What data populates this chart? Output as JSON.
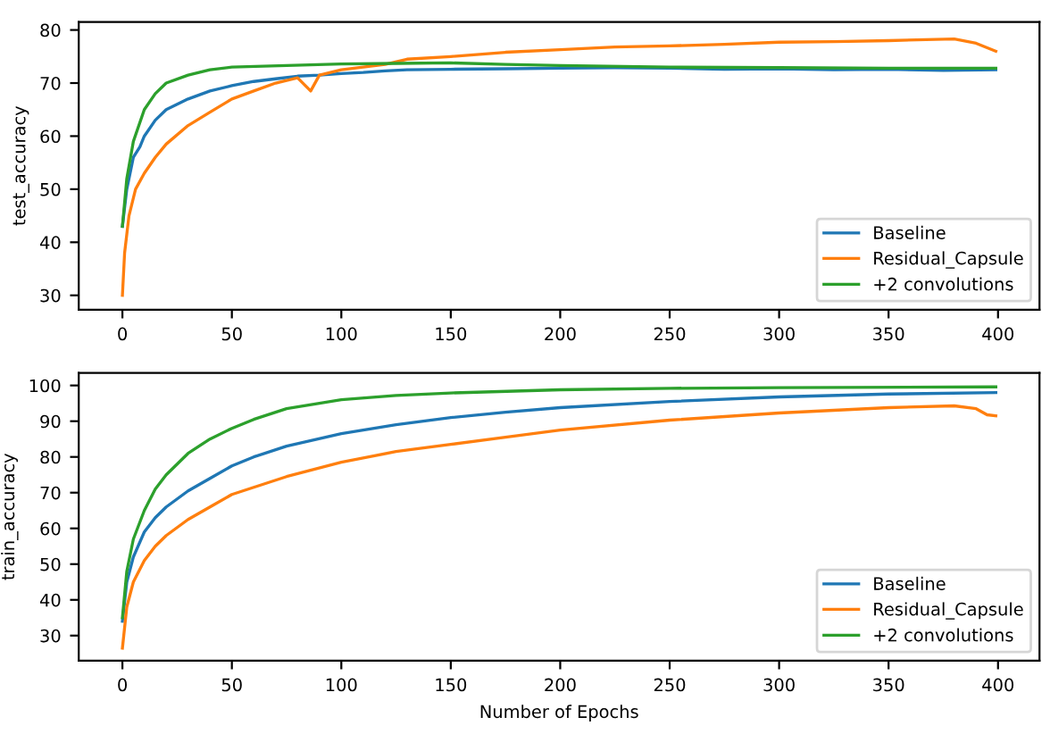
{
  "chart_data": [
    {
      "type": "line",
      "ylabel": "test_accuracy",
      "xlim": [
        -19.95,
        418.95
      ],
      "ylim": [
        27.3,
        81.5
      ],
      "xticks": [
        0,
        50,
        100,
        150,
        200,
        250,
        300,
        350,
        400
      ],
      "yticks": [
        30,
        40,
        50,
        60,
        70,
        80
      ],
      "legend": "lower right",
      "grid": false,
      "series": [
        {
          "name": "Baseline",
          "color": "#1f77b4",
          "x": [
            0,
            2,
            5,
            8,
            10,
            15,
            20,
            25,
            30,
            40,
            50,
            60,
            70,
            80,
            90,
            100,
            110,
            120,
            130,
            150,
            175,
            200,
            225,
            250,
            275,
            300,
            325,
            350,
            375,
            399
          ],
          "values": [
            43,
            50,
            56,
            58,
            60,
            63,
            65,
            66,
            67,
            68.5,
            69.5,
            70.3,
            70.8,
            71.3,
            71.5,
            71.8,
            72,
            72.3,
            72.5,
            72.6,
            72.7,
            72.8,
            72.9,
            72.8,
            72.6,
            72.7,
            72.5,
            72.6,
            72.4,
            72.5
          ]
        },
        {
          "name": "Residual_Capsule",
          "color": "#ff7f0e",
          "x": [
            0,
            1,
            3,
            6,
            10,
            15,
            20,
            30,
            40,
            50,
            60,
            70,
            80,
            86,
            90,
            100,
            110,
            120,
            130,
            150,
            175,
            200,
            225,
            250,
            275,
            300,
            325,
            350,
            380,
            390,
            399
          ],
          "values": [
            30,
            38,
            45,
            50,
            53,
            56,
            58.5,
            62,
            64.5,
            67,
            68.5,
            70,
            71,
            68.5,
            71.5,
            72.5,
            73,
            73.5,
            74.5,
            75,
            75.8,
            76.3,
            76.8,
            77,
            77.3,
            77.7,
            77.8,
            78,
            78.3,
            77.5,
            76
          ]
        },
        {
          "name": "+2 convolutions",
          "color": "#2ca02c",
          "x": [
            0,
            2,
            5,
            10,
            15,
            20,
            30,
            40,
            50,
            75,
            100,
            125,
            150,
            175,
            200,
            250,
            300,
            350,
            399
          ],
          "values": [
            43,
            52,
            59,
            65,
            68,
            70,
            71.5,
            72.5,
            73,
            73.3,
            73.6,
            73.7,
            73.8,
            73.5,
            73.3,
            73,
            72.9,
            72.8,
            72.8
          ]
        }
      ]
    },
    {
      "type": "line",
      "ylabel": "train_accuracy",
      "xlabel": "Number of Epochs",
      "xlim": [
        -19.95,
        418.95
      ],
      "ylim": [
        23,
        103.5
      ],
      "xticks": [
        0,
        50,
        100,
        150,
        200,
        250,
        300,
        350,
        400
      ],
      "yticks": [
        30,
        40,
        50,
        60,
        70,
        80,
        90,
        100
      ],
      "legend": "lower right",
      "grid": false,
      "series": [
        {
          "name": "Baseline",
          "color": "#1f77b4",
          "x": [
            0,
            2,
            5,
            10,
            15,
            20,
            30,
            40,
            50,
            60,
            75,
            100,
            125,
            150,
            175,
            200,
            250,
            300,
            350,
            399
          ],
          "values": [
            34,
            45,
            52,
            59,
            63,
            66,
            70.5,
            74,
            77.5,
            80,
            83,
            86.5,
            89,
            91,
            92.5,
            93.8,
            95.5,
            96.8,
            97.6,
            98
          ]
        },
        {
          "name": "Residual_Capsule",
          "color": "#ff7f0e",
          "x": [
            0,
            2,
            5,
            10,
            15,
            20,
            30,
            40,
            50,
            60,
            75,
            100,
            125,
            150,
            175,
            200,
            250,
            300,
            350,
            380,
            390,
            395,
            399
          ],
          "values": [
            26.5,
            38,
            45,
            51,
            55,
            58,
            62.5,
            66,
            69.5,
            71.5,
            74.5,
            78.5,
            81.5,
            83.5,
            85.5,
            87.5,
            90.3,
            92.3,
            93.8,
            94.3,
            93.5,
            91.8,
            91.5
          ]
        },
        {
          "name": "+2 convolutions",
          "color": "#2ca02c",
          "x": [
            0,
            2,
            5,
            10,
            15,
            20,
            30,
            40,
            50,
            60,
            75,
            100,
            125,
            150,
            200,
            250,
            300,
            399
          ],
          "values": [
            35,
            48,
            57,
            65,
            71,
            75,
            81,
            85,
            88,
            90.5,
            93.5,
            96,
            97.2,
            97.9,
            98.8,
            99.2,
            99.4,
            99.6
          ]
        }
      ]
    }
  ]
}
